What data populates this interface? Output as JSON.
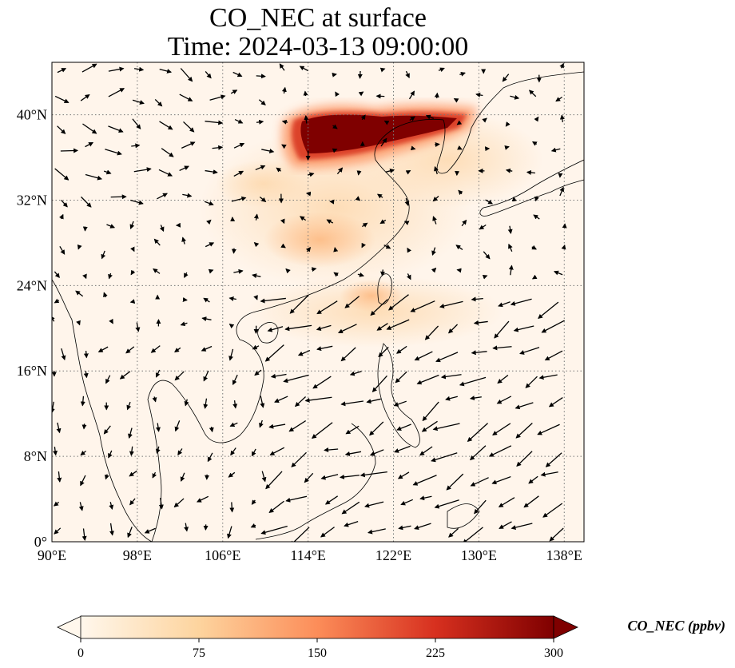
{
  "title_line1": "CO_NEC at surface",
  "title_line2": "Time: 2024-03-13 09:00:00",
  "map": {
    "lon_range": [
      90,
      140
    ],
    "lat_range": [
      0,
      40
    ],
    "lon_ticks": [
      {
        "value": 90,
        "label": "90°E"
      },
      {
        "value": 98,
        "label": "98°E"
      },
      {
        "value": 106,
        "label": "106°E"
      },
      {
        "value": 114,
        "label": "114°E"
      },
      {
        "value": 122,
        "label": "122°E"
      },
      {
        "value": 130,
        "label": "130°E"
      },
      {
        "value": 138,
        "label": "138°E"
      }
    ],
    "lat_ticks": [
      {
        "value": 0,
        "label": "0°"
      },
      {
        "value": 8,
        "label": "8°N"
      },
      {
        "value": 16,
        "label": "16°N"
      },
      {
        "value": 24,
        "label": "24°N"
      },
      {
        "value": 32,
        "label": "32°N"
      },
      {
        "value": 40,
        "label": "40°N"
      }
    ],
    "gridlines": "dotted",
    "background_color": "#fff5eb",
    "plume_color": "#7f0000"
  },
  "colorbar": {
    "label": "CO_NEC (ppbv)",
    "min": 0,
    "max": 300,
    "ticks": [
      {
        "value": 0,
        "label": "0"
      },
      {
        "value": 75,
        "label": "75"
      },
      {
        "value": 150,
        "label": "150"
      },
      {
        "value": 225,
        "label": "225"
      },
      {
        "value": 300,
        "label": "300"
      }
    ],
    "colormap": "OrRd",
    "extend": "both"
  }
}
